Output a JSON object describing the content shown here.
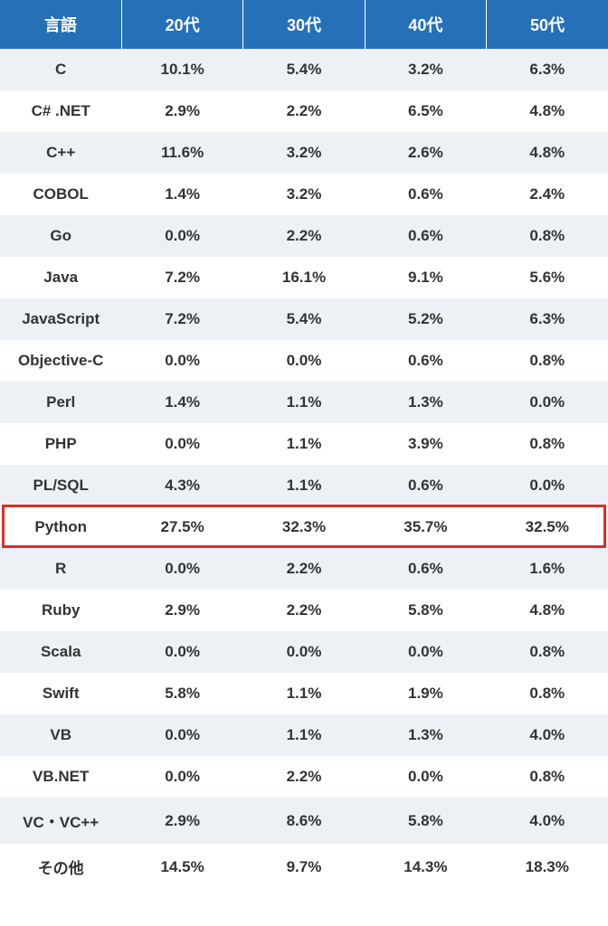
{
  "table": {
    "type": "table",
    "header_bg": "#2670b8",
    "header_text_color": "#ffffff",
    "row_bg_odd": "#edf1f6",
    "row_bg_even": "#ffffff",
    "text_color": "#333333",
    "highlight_border_color": "#d93025",
    "highlight_row_index": 11,
    "font_weight": 700,
    "header_fontsize": 18,
    "cell_fontsize": 17,
    "columns": [
      "言語",
      "20代",
      "30代",
      "40代",
      "50代"
    ],
    "rows": [
      [
        "C",
        "10.1%",
        "5.4%",
        "3.2%",
        "6.3%"
      ],
      [
        "C# .NET",
        "2.9%",
        "2.2%",
        "6.5%",
        "4.8%"
      ],
      [
        "C++",
        "11.6%",
        "3.2%",
        "2.6%",
        "4.8%"
      ],
      [
        "COBOL",
        "1.4%",
        "3.2%",
        "0.6%",
        "2.4%"
      ],
      [
        "Go",
        "0.0%",
        "2.2%",
        "0.6%",
        "0.8%"
      ],
      [
        "Java",
        "7.2%",
        "16.1%",
        "9.1%",
        "5.6%"
      ],
      [
        "JavaScript",
        "7.2%",
        "5.4%",
        "5.2%",
        "6.3%"
      ],
      [
        "Objective-C",
        "0.0%",
        "0.0%",
        "0.6%",
        "0.8%"
      ],
      [
        "Perl",
        "1.4%",
        "1.1%",
        "1.3%",
        "0.0%"
      ],
      [
        "PHP",
        "0.0%",
        "1.1%",
        "3.9%",
        "0.8%"
      ],
      [
        "PL/SQL",
        "4.3%",
        "1.1%",
        "0.6%",
        "0.0%"
      ],
      [
        "Python",
        "27.5%",
        "32.3%",
        "35.7%",
        "32.5%"
      ],
      [
        "R",
        "0.0%",
        "2.2%",
        "0.6%",
        "1.6%"
      ],
      [
        "Ruby",
        "2.9%",
        "2.2%",
        "5.8%",
        "4.8%"
      ],
      [
        "Scala",
        "0.0%",
        "0.0%",
        "0.0%",
        "0.8%"
      ],
      [
        "Swift",
        "5.8%",
        "1.1%",
        "1.9%",
        "0.8%"
      ],
      [
        "VB",
        "0.0%",
        "1.1%",
        "1.3%",
        "4.0%"
      ],
      [
        "VB.NET",
        "0.0%",
        "2.2%",
        "0.0%",
        "0.8%"
      ],
      [
        "VC・VC++",
        "2.9%",
        "8.6%",
        "5.8%",
        "4.0%"
      ],
      [
        "その他",
        "14.5%",
        "9.7%",
        "14.3%",
        "18.3%"
      ]
    ]
  }
}
